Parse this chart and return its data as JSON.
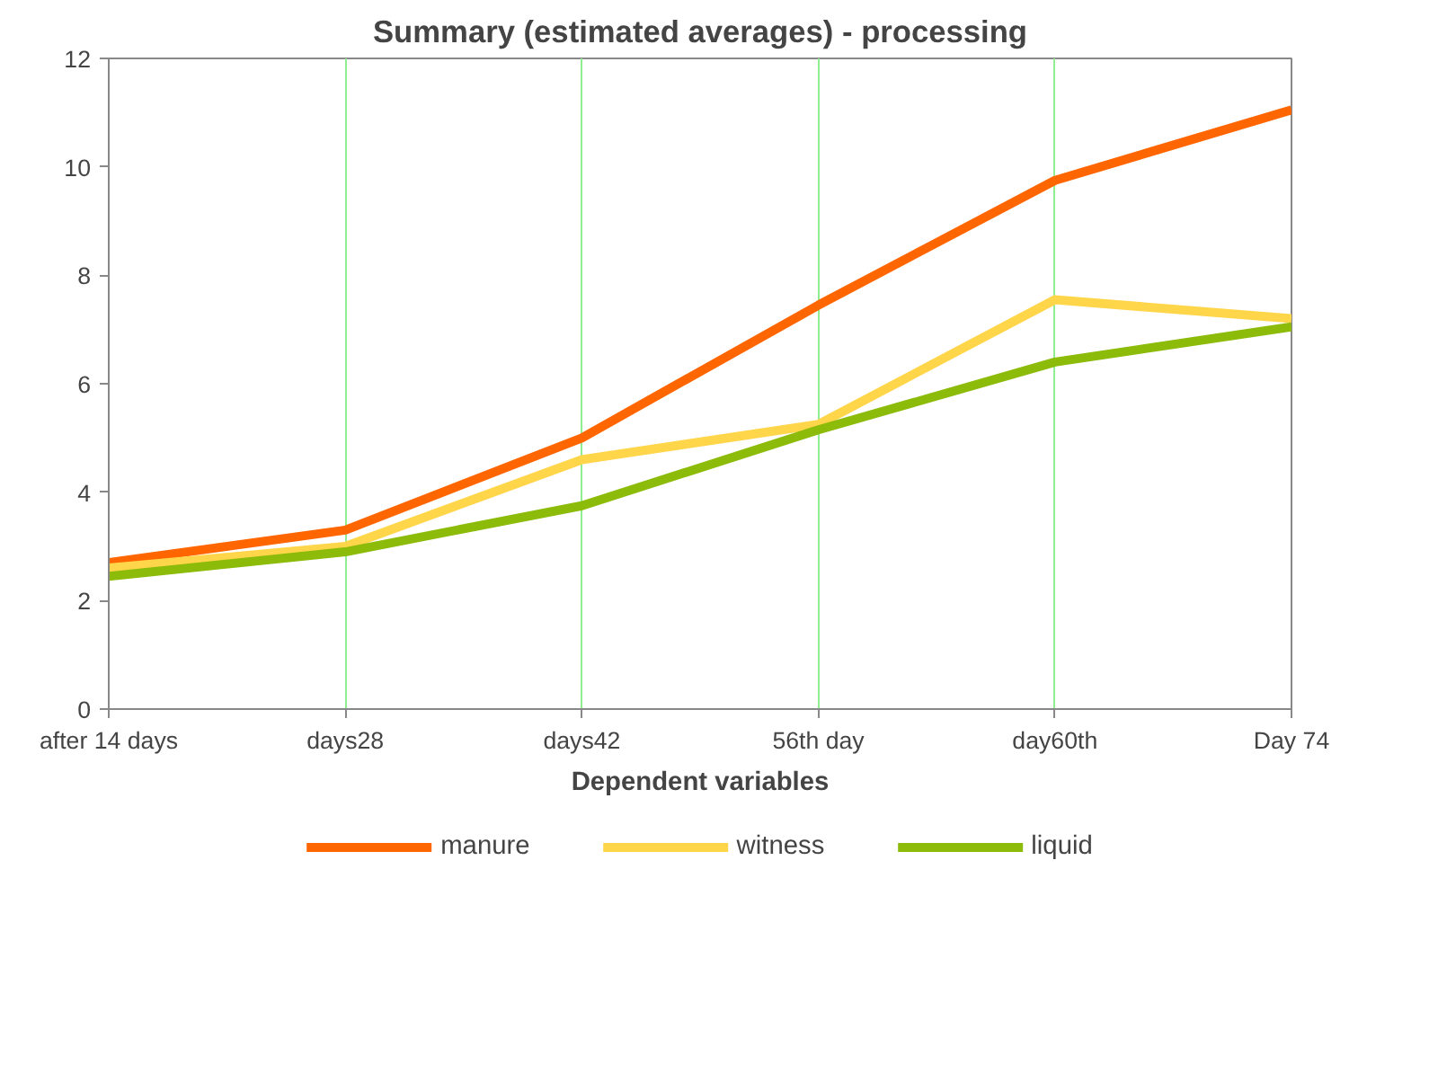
{
  "chart_data": {
    "type": "line",
    "title": "Summary (estimated averages) - processing",
    "xlabel": "Dependent variables",
    "categories": [
      "after 14 days",
      "days28",
      "days42",
      "56th day",
      "day60th",
      "Day 74"
    ],
    "series": [
      {
        "name": "manure",
        "color": "#ff6600",
        "values": [
          2.7,
          3.3,
          5.0,
          7.45,
          9.75,
          11.05
        ]
      },
      {
        "name": "witness",
        "color": "#ffd54a",
        "values": [
          2.6,
          3.0,
          4.6,
          5.25,
          7.55,
          7.2
        ]
      },
      {
        "name": "liquid",
        "color": "#8cbb0a",
        "values": [
          2.45,
          2.9,
          3.75,
          5.15,
          6.4,
          7.05
        ]
      }
    ],
    "ylim": [
      0,
      12
    ],
    "yticks": [
      0,
      2,
      4,
      6,
      8,
      10,
      12
    ],
    "grid": "x",
    "legend": "bottom",
    "marker": "none",
    "line_style": "solid"
  }
}
